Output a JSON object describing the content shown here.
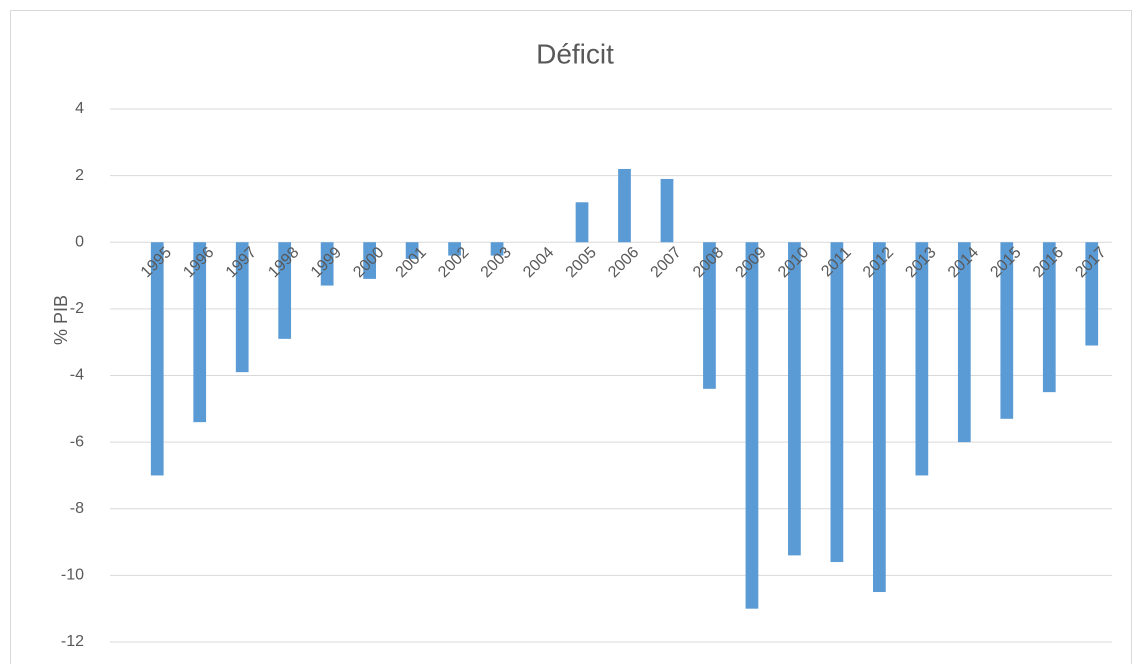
{
  "chart_data": {
    "type": "bar",
    "title": "Déficit",
    "y_label": "% PIB",
    "categories": [
      "1995",
      "1996",
      "1997",
      "1998",
      "1999",
      "2000",
      "2001",
      "2002",
      "2003",
      "2004",
      "2005",
      "2006",
      "2007",
      "2008",
      "2009",
      "2010",
      "2011",
      "2012",
      "2013",
      "2014",
      "2015",
      "2016",
      "2017"
    ],
    "values": [
      -7,
      -5.4,
      -3.9,
      -2.9,
      -1.3,
      -1.1,
      -0.5,
      -0.4,
      -0.4,
      0,
      1.2,
      2.2,
      1.9,
      -4.4,
      -11,
      -9.4,
      -9.6,
      -10.5,
      -7,
      -6,
      -5.3,
      -4.5,
      -3.1
    ],
    "color": "#5b9bd5",
    "ylim": [
      -12,
      4
    ],
    "yticks": [
      -12,
      -10,
      -8,
      -6,
      -4,
      -2,
      0,
      2,
      4
    ],
    "grid": true
  }
}
